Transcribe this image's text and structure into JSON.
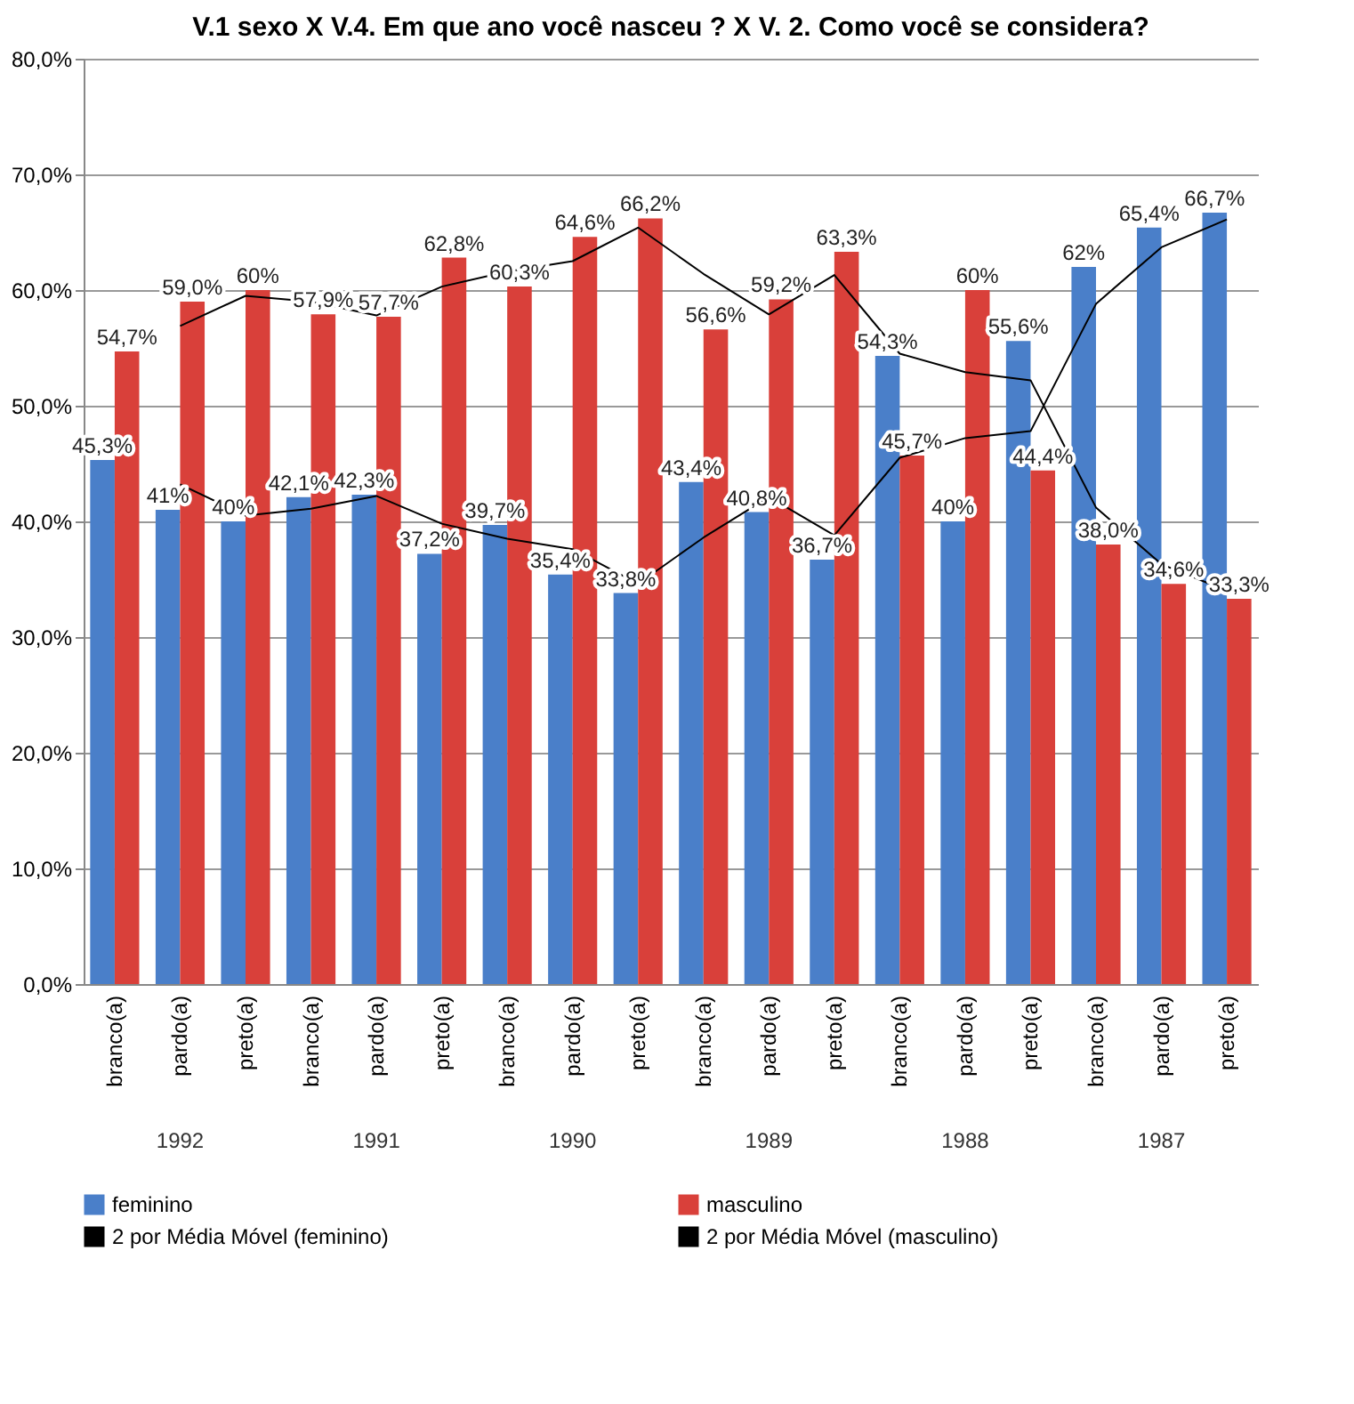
{
  "chart_data": {
    "type": "bar",
    "title": "V.1 sexo X V.4. Em que ano você nasceu ? X V. 2. Como você se considera?",
    "categories": [
      "branco(a)",
      "pardo(a)",
      "preto(a)",
      "branco(a)",
      "pardo(a)",
      "preto(a)",
      "branco(a)",
      "pardo(a)",
      "preto(a)",
      "branco(a)",
      "pardo(a)",
      "preto(a)",
      "branco(a)",
      "pardo(a)",
      "preto(a)",
      "branco(a)",
      "pardo(a)",
      "preto(a)"
    ],
    "series": [
      {
        "name": "feminino",
        "color": "#4a7fc9",
        "values": [
          45.3,
          41,
          40,
          42.1,
          42.3,
          37.2,
          39.7,
          35.4,
          33.8,
          43.4,
          40.8,
          36.7,
          54.3,
          40,
          55.6,
          62,
          65.4,
          66.7
        ],
        "value_labels": [
          "45,3%",
          "41%",
          "40%",
          "42,1%",
          "42,3%",
          "37,2%",
          "39,7%",
          "35,4%",
          "33,8%",
          "43,4%",
          "40,8%",
          "36,7%",
          "54,3%",
          "40%",
          "55,6%",
          "62%",
          "65,4%",
          "66,7%"
        ]
      },
      {
        "name": "masculino",
        "color": "#d9403a",
        "values": [
          54.7,
          59.0,
          60,
          57.9,
          57.7,
          62.8,
          60.3,
          64.6,
          66.2,
          56.6,
          59.2,
          63.3,
          45.7,
          60,
          44.4,
          38.0,
          34.6,
          33.3
        ],
        "value_labels": [
          "54,7%",
          "59,0%",
          "60%",
          "57,9%",
          "57,7%",
          "62,8%",
          "60,3%",
          "64,6%",
          "66,2%",
          "56,6%",
          "59,2%",
          "63,3%",
          "45,7%",
          "60%",
          "44,4%",
          "38,0%",
          "34,6%",
          "33,3%"
        ]
      },
      {
        "name": "2 por Média Móvel (feminino)",
        "type": "line",
        "color": "#000000",
        "values": [
          null,
          43.2,
          40.5,
          41.1,
          42.2,
          39.8,
          38.5,
          37.6,
          34.6,
          38.6,
          42.1,
          38.8,
          45.5,
          47.2,
          47.8,
          58.8,
          63.7,
          66.1
        ]
      },
      {
        "name": "2 por Média Móvel (masculino)",
        "type": "line",
        "color": "#000000",
        "values": [
          null,
          56.9,
          59.5,
          59.0,
          57.8,
          60.3,
          61.6,
          62.5,
          65.4,
          61.4,
          57.9,
          61.3,
          54.5,
          52.9,
          52.2,
          41.2,
          36.3,
          34.0
        ]
      }
    ],
    "annotations": [
      "1992",
      "1991",
      "1990",
      "1989",
      "1988",
      "1987"
    ],
    "ylim": [
      0,
      80
    ],
    "yticks": [
      {
        "value": 0,
        "label": "0,0%"
      },
      {
        "value": 10,
        "label": "10,0%"
      },
      {
        "value": 20,
        "label": "20,0%"
      },
      {
        "value": 30,
        "label": "30,0%"
      },
      {
        "value": 40,
        "label": "40,0%"
      },
      {
        "value": 50,
        "label": "50,0%"
      },
      {
        "value": 60,
        "label": "60,0%"
      },
      {
        "value": 70,
        "label": "70,0%"
      },
      {
        "value": 80,
        "label": "80,0%"
      }
    ],
    "grid": true,
    "legend": "bottom"
  }
}
